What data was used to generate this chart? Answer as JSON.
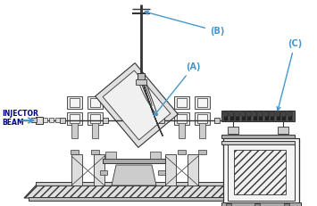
{
  "bg_color": "#ffffff",
  "line_color": "#333333",
  "blue_color": "#4499cc",
  "label_A": "(A)",
  "label_B": "(B)",
  "label_C": "(C)",
  "label_injector": "INJECTOR",
  "label_beam": "BEAM",
  "figsize": [
    3.55,
    2.31
  ],
  "dpi": 100
}
